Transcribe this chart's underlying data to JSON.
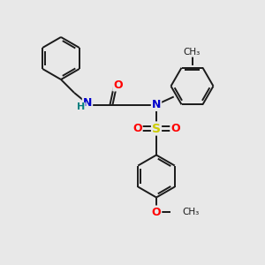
{
  "bg_color": "#e8e8e8",
  "bond_color": "#1a1a1a",
  "atom_colors": {
    "N": "#0000cc",
    "O": "#ff0000",
    "S": "#cccc00",
    "H": "#008080",
    "C": "#1a1a1a"
  }
}
